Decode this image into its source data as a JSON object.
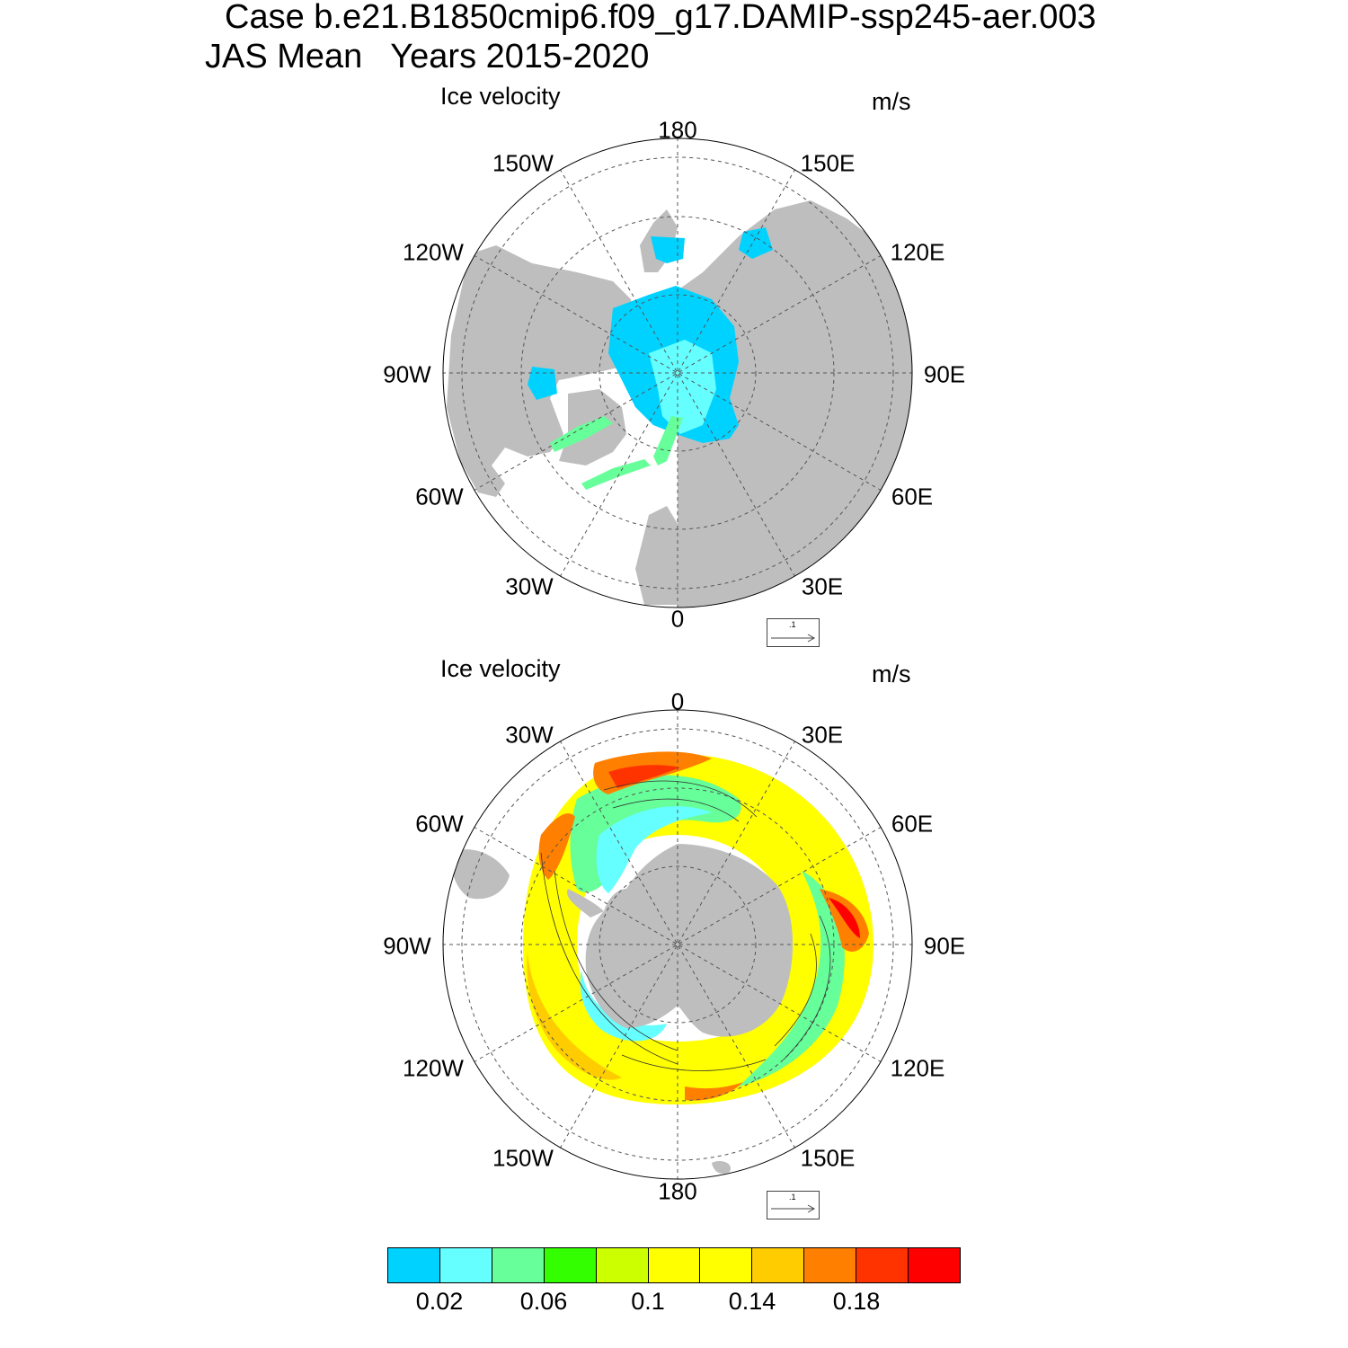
{
  "title": {
    "line1": "Case b.e21.B1850cmip6.f09_g17.DAMIP-ssp245-aer.003",
    "line2": "JAS Mean   Years 2015-2020"
  },
  "panels": [
    {
      "hemisphere": "north",
      "title": "Ice velocity",
      "units": "m/s",
      "lon_labels": [
        "180",
        "150E",
        "120E",
        "90E",
        "60E",
        "30E",
        "0",
        "30W",
        "60W",
        "90W",
        "120W",
        "150W"
      ],
      "reference_vector": ".1"
    },
    {
      "hemisphere": "south",
      "title": "Ice velocity",
      "units": "m/s",
      "lon_labels": [
        "0",
        "30E",
        "60E",
        "90E",
        "120E",
        "150E",
        "180",
        "150W",
        "120W",
        "90W",
        "60W",
        "30W"
      ],
      "reference_vector": ".1"
    }
  ],
  "colorbar": {
    "colors": [
      "#00d2ff",
      "#66ffff",
      "#66ff99",
      "#33ff00",
      "#ccff00",
      "#ffff00",
      "#ffff00",
      "#ffcc00",
      "#ff8000",
      "#ff3300",
      "#ff0000"
    ],
    "labels": [
      "0.02",
      "0.06",
      "0.1",
      "0.14",
      "0.18"
    ],
    "label_boundaries": [
      1,
      3,
      5,
      7,
      9
    ]
  },
  "land_color": "#bebebe"
}
